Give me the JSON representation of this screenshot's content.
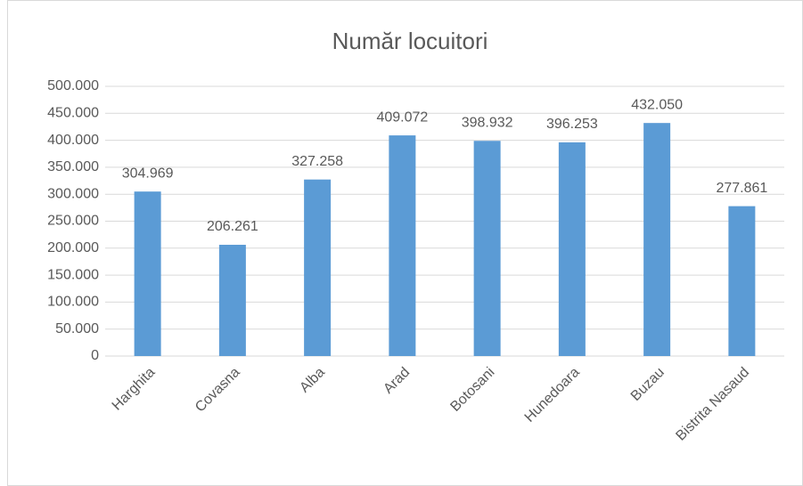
{
  "chart_data": {
    "type": "bar",
    "title": "Număr locuitori",
    "categories": [
      "Harghita",
      "Covasna",
      "Alba",
      "Arad",
      "Botosani",
      "Hunedoara",
      "Buzau",
      "Bistrita Nasaud"
    ],
    "values": [
      304969,
      206261,
      327258,
      409072,
      398932,
      396253,
      432050,
      277861
    ],
    "value_labels": [
      "304.969",
      "206.261",
      "327.258",
      "409.072",
      "398.932",
      "396.253",
      "432.050",
      "277.861"
    ],
    "color": "#5b9bd5",
    "ylim": [
      0,
      500000
    ],
    "yticks": [
      0,
      {
        "value": 50000,
        "label": "50.000"
      },
      {
        "value": 100000,
        "label": "100.000"
      },
      {
        "value": 150000,
        "label": "150.000"
      },
      {
        "value": 200000,
        "label": "200.000"
      },
      {
        "value": 250000,
        "label": "250.000"
      },
      {
        "value": 300000,
        "label": "300.000"
      },
      {
        "value": 350000,
        "label": "350.000"
      },
      {
        "value": 400000,
        "label": "400.000"
      },
      {
        "value": 450000,
        "label": "450.000"
      },
      {
        "value": 500000,
        "label": "500.000"
      }
    ],
    "grid": true
  }
}
